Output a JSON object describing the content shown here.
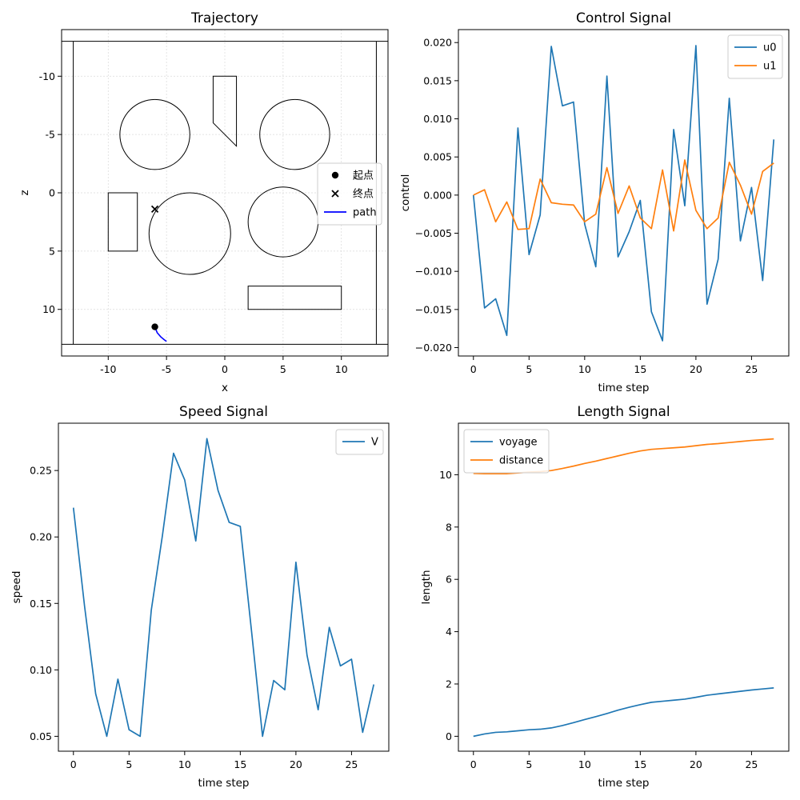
{
  "colors": {
    "blue": "#1f77b4",
    "orange": "#ff7f0e",
    "path": "#0000ff",
    "obstacle": "#000000",
    "grid": "#d9d9d9"
  },
  "chart_data": [
    {
      "type": "scatter",
      "title": "Trajectory",
      "xlabel": "x",
      "ylabel": "z",
      "xlim": [
        -14,
        14
      ],
      "ylim": [
        14,
        -14
      ],
      "y_inverted": true,
      "grid": true,
      "xticks": [
        -10,
        -5,
        0,
        5,
        10
      ],
      "yticks": [
        -10,
        -5,
        0,
        5,
        10
      ],
      "legend": {
        "placement": "center-right",
        "entries": [
          "起点",
          "终点",
          "path"
        ]
      },
      "boundary": [
        {
          "x": [
            -14,
            14
          ],
          "z": [
            -13,
            -13
          ]
        },
        {
          "x": [
            -14,
            14
          ],
          "z": [
            13,
            13
          ]
        },
        {
          "x": [
            -13,
            -13
          ],
          "z": [
            -13,
            13
          ]
        },
        {
          "x": [
            13,
            13
          ],
          "z": [
            -13,
            13
          ]
        }
      ],
      "circles": [
        {
          "cx": -6,
          "cz": -5,
          "r": 3
        },
        {
          "cx": 6,
          "cz": -5,
          "r": 3
        },
        {
          "cx": -3,
          "cz": 3.5,
          "r": 3.5
        },
        {
          "cx": 5,
          "cz": 2.5,
          "r": 3
        }
      ],
      "polygons": [
        {
          "points": [
            [
              -1,
              -10
            ],
            [
              1,
              -10
            ],
            [
              1,
              -4
            ],
            [
              -1,
              -6
            ]
          ]
        },
        {
          "points": [
            [
              -10,
              0
            ],
            [
              -7.5,
              0
            ],
            [
              -7.5,
              5
            ],
            [
              -10,
              5
            ]
          ]
        },
        {
          "points": [
            [
              2,
              8
            ],
            [
              10,
              8
            ],
            [
              10,
              10
            ],
            [
              2,
              10
            ]
          ]
        }
      ],
      "start": {
        "x": -6,
        "z": 11.5
      },
      "goal": {
        "x": -6,
        "z": 1.4
      },
      "path": {
        "x": [
          -6,
          -5.8,
          -5.5,
          -5.2,
          -5
        ],
        "z": [
          11.5,
          12,
          12.35,
          12.6,
          12.75
        ]
      }
    },
    {
      "type": "line",
      "title": "Control Signal",
      "xlabel": "time step",
      "ylabel": "control",
      "xlim": [
        -1.35,
        28.35
      ],
      "ylim": [
        -0.0211,
        0.0217
      ],
      "xticks": [
        0,
        5,
        10,
        15,
        20,
        25
      ],
      "yticks": [
        -0.02,
        -0.015,
        -0.01,
        -0.005,
        0.0,
        0.005,
        0.01,
        0.015,
        0.02
      ],
      "ytick_labels": [
        "−0.020",
        "−0.015",
        "−0.010",
        "−0.005",
        "0.000",
        "0.005",
        "0.010",
        "0.015",
        "0.020"
      ],
      "legend": {
        "placement": "top-right"
      },
      "series": [
        {
          "name": "u0",
          "color": "#1f77b4",
          "x": [
            0,
            1,
            2,
            3,
            4,
            5,
            6,
            7,
            8,
            9,
            10,
            11,
            12,
            13,
            14,
            15,
            16,
            17,
            18,
            19,
            20,
            21,
            22,
            23,
            24,
            25,
            26,
            27
          ],
          "values": [
            0.0,
            -0.0148,
            -0.0136,
            -0.0184,
            0.0088,
            -0.0078,
            -0.0026,
            0.0195,
            0.0117,
            0.0122,
            -0.0038,
            -0.0094,
            0.0156,
            -0.0081,
            -0.0048,
            -0.0007,
            -0.0153,
            -0.0191,
            0.0086,
            -0.0014,
            0.0196,
            -0.0143,
            -0.0084,
            0.0127,
            -0.006,
            0.001,
            -0.0112,
            0.0073
          ]
        },
        {
          "name": "u1",
          "color": "#ff7f0e",
          "x": [
            0,
            1,
            2,
            3,
            4,
            5,
            6,
            7,
            8,
            9,
            10,
            11,
            12,
            13,
            14,
            15,
            16,
            17,
            18,
            19,
            20,
            21,
            22,
            23,
            24,
            25,
            26,
            27
          ],
          "values": [
            0.0,
            0.0007,
            -0.0035,
            -0.0009,
            -0.0045,
            -0.0044,
            0.0021,
            -0.001,
            -0.0012,
            -0.0013,
            -0.0035,
            -0.0025,
            0.0036,
            -0.0024,
            0.0012,
            -0.003,
            -0.0044,
            0.0033,
            -0.0047,
            0.0046,
            -0.002,
            -0.0044,
            -0.003,
            0.0043,
            0.0013,
            -0.0025,
            0.0031,
            0.0042
          ]
        }
      ]
    },
    {
      "type": "line",
      "title": "Speed Signal",
      "xlabel": "time step",
      "ylabel": "speed",
      "xlim": [
        -1.35,
        28.35
      ],
      "ylim": [
        0.0388,
        0.2856
      ],
      "xticks": [
        0,
        5,
        10,
        15,
        20,
        25
      ],
      "yticks": [
        0.05,
        0.1,
        0.15,
        0.2,
        0.25
      ],
      "ytick_labels": [
        "0.05",
        "0.10",
        "0.15",
        "0.20",
        "0.25"
      ],
      "legend": {
        "placement": "top-right"
      },
      "series": [
        {
          "name": "V",
          "color": "#1f77b4",
          "x": [
            0,
            1,
            2,
            3,
            4,
            5,
            6,
            7,
            8,
            9,
            10,
            11,
            12,
            13,
            14,
            15,
            16,
            17,
            18,
            19,
            20,
            21,
            22,
            23,
            24,
            25,
            26,
            27
          ],
          "values": [
            0.222,
            0.148,
            0.082,
            0.05,
            0.093,
            0.055,
            0.05,
            0.145,
            0.201,
            0.263,
            0.243,
            0.197,
            0.274,
            0.235,
            0.211,
            0.208,
            0.13,
            0.05,
            0.092,
            0.085,
            0.181,
            0.111,
            0.07,
            0.132,
            0.103,
            0.108,
            0.053,
            0.089
          ]
        }
      ]
    },
    {
      "type": "line",
      "title": "Length Signal",
      "xlabel": "time step",
      "ylabel": "length",
      "xlim": [
        -1.35,
        28.35
      ],
      "ylim": [
        -0.57,
        11.97
      ],
      "xticks": [
        0,
        5,
        10,
        15,
        20,
        25
      ],
      "yticks": [
        0,
        2,
        4,
        6,
        8,
        10
      ],
      "ytick_labels": [
        "0",
        "2",
        "4",
        "6",
        "8",
        "10"
      ],
      "legend": {
        "placement": "top-left"
      },
      "series": [
        {
          "name": "voyage",
          "color": "#1f77b4",
          "x": [
            0,
            1,
            2,
            3,
            4,
            5,
            6,
            7,
            8,
            9,
            10,
            11,
            12,
            13,
            14,
            15,
            16,
            17,
            18,
            19,
            20,
            21,
            22,
            23,
            24,
            25,
            26,
            27
          ],
          "values": [
            0.0,
            0.09,
            0.15,
            0.17,
            0.21,
            0.25,
            0.27,
            0.32,
            0.41,
            0.52,
            0.64,
            0.75,
            0.87,
            1.0,
            1.11,
            1.21,
            1.3,
            1.34,
            1.38,
            1.42,
            1.49,
            1.57,
            1.62,
            1.67,
            1.72,
            1.77,
            1.81,
            1.85
          ]
        },
        {
          "name": "distance",
          "color": "#ff7f0e",
          "x": [
            0,
            1,
            2,
            3,
            4,
            5,
            6,
            7,
            8,
            9,
            10,
            11,
            12,
            13,
            14,
            15,
            16,
            17,
            18,
            19,
            20,
            21,
            22,
            23,
            24,
            25,
            26,
            27
          ],
          "values": [
            10.05,
            10.04,
            10.04,
            10.04,
            10.07,
            10.1,
            10.12,
            10.16,
            10.24,
            10.33,
            10.43,
            10.52,
            10.62,
            10.72,
            10.82,
            10.91,
            10.97,
            11.0,
            11.03,
            11.06,
            11.11,
            11.16,
            11.19,
            11.23,
            11.27,
            11.31,
            11.34,
            11.37
          ]
        }
      ]
    }
  ]
}
